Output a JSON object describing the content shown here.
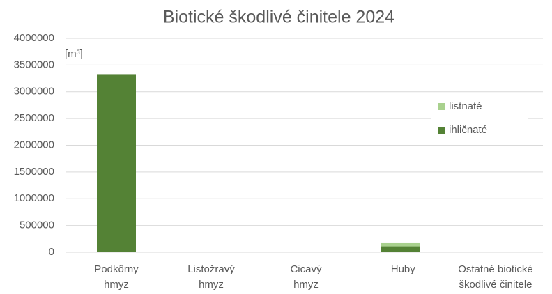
{
  "chart_data": {
    "type": "bar",
    "stacked": true,
    "title": "Biotické škodlivé činitele 2024",
    "y_unit_label": "[m³]",
    "categories": [
      "Podkôrny hmyz",
      "Listožravý hmyz",
      "Cicavý hmyz",
      "Huby",
      "Ostatné biotické škodlivé činitele"
    ],
    "series": [
      {
        "name": "ihličnaté",
        "color": "#548235",
        "values": [
          3330000,
          5000,
          1000,
          110000,
          8000
        ]
      },
      {
        "name": "listnaté",
        "color": "#a9d18e",
        "values": [
          0,
          3000,
          0,
          60000,
          4000
        ]
      }
    ],
    "ylim": [
      0,
      4000000
    ],
    "yticks": [
      0,
      500000,
      1000000,
      1500000,
      2000000,
      2500000,
      3000000,
      3500000,
      4000000
    ],
    "grid": true,
    "legend": "upper right"
  }
}
